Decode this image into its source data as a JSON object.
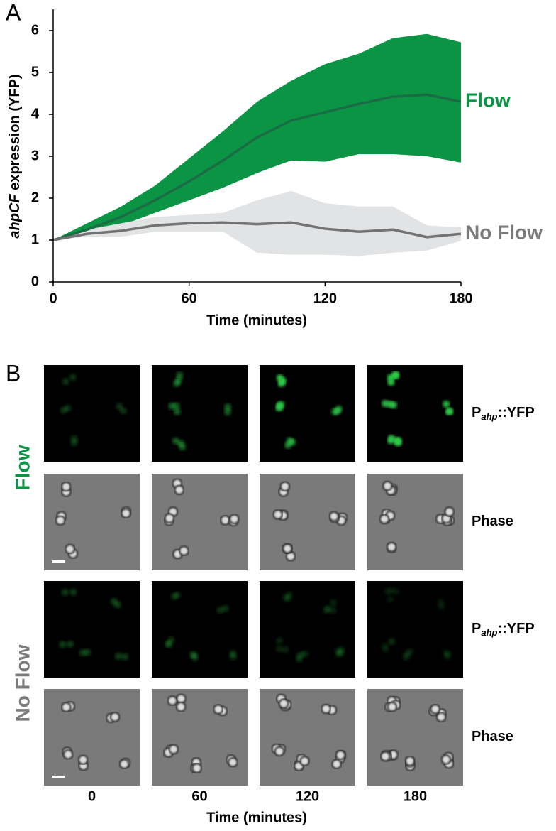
{
  "chart_data": {
    "type": "line",
    "x_label": "Time (minutes)",
    "y_label": {
      "italic": "ahpCF",
      "rest": " expression (YFP)"
    },
    "x": [
      0,
      15,
      30,
      45,
      60,
      75,
      90,
      105,
      120,
      135,
      150,
      165,
      180
    ],
    "xlim": [
      0,
      180
    ],
    "xticks": [
      0,
      60,
      120,
      180
    ],
    "ylim": [
      0,
      6
    ],
    "yticks": [
      0,
      1,
      2,
      3,
      4,
      5,
      6
    ],
    "grid": false,
    "series": [
      {
        "name": "Flow",
        "color": "#1b6b45",
        "band_color": "#0a9444",
        "label_color": "#0a9444",
        "values": [
          1.0,
          1.25,
          1.55,
          1.95,
          2.4,
          2.9,
          3.45,
          3.85,
          4.05,
          4.25,
          4.42,
          4.47,
          4.3
        ],
        "upper": [
          1.0,
          1.4,
          1.8,
          2.3,
          2.95,
          3.6,
          4.3,
          4.8,
          5.2,
          5.45,
          5.82,
          5.92,
          5.72
        ],
        "lower": [
          1.0,
          1.15,
          1.35,
          1.65,
          1.95,
          2.25,
          2.6,
          2.9,
          2.87,
          3.05,
          3.05,
          3.0,
          2.85
        ]
      },
      {
        "name": "No Flow",
        "color": "#737373",
        "band_color": "#e2e3e4",
        "label_color": "#7b7b7b",
        "values": [
          1.0,
          1.15,
          1.22,
          1.35,
          1.4,
          1.42,
          1.38,
          1.42,
          1.27,
          1.2,
          1.25,
          1.07,
          1.15
        ],
        "upper": [
          1.0,
          1.25,
          1.4,
          1.55,
          1.6,
          1.65,
          1.95,
          2.17,
          1.88,
          1.8,
          1.8,
          1.35,
          1.3
        ],
        "lower": [
          1.0,
          1.08,
          1.08,
          1.2,
          1.2,
          1.2,
          0.7,
          0.65,
          0.65,
          0.62,
          0.7,
          0.75,
          0.98
        ]
      }
    ]
  },
  "panel_a": "A",
  "panel_b": {
    "label": "B",
    "columns": [
      "0",
      "60",
      "120",
      "180"
    ],
    "x_label": "Time (minutes)",
    "groups": [
      {
        "name": "Flow",
        "color": "#0a9444"
      },
      {
        "name": "No Flow",
        "color": "#7b7b7b"
      }
    ],
    "rows": [
      {
        "main": "P",
        "sub": "ahp",
        "rest": "::YFP"
      },
      {
        "main": "Phase"
      },
      {
        "main": "P",
        "sub": "ahp",
        "rest": "::YFP"
      },
      {
        "main": "Phase"
      }
    ]
  }
}
